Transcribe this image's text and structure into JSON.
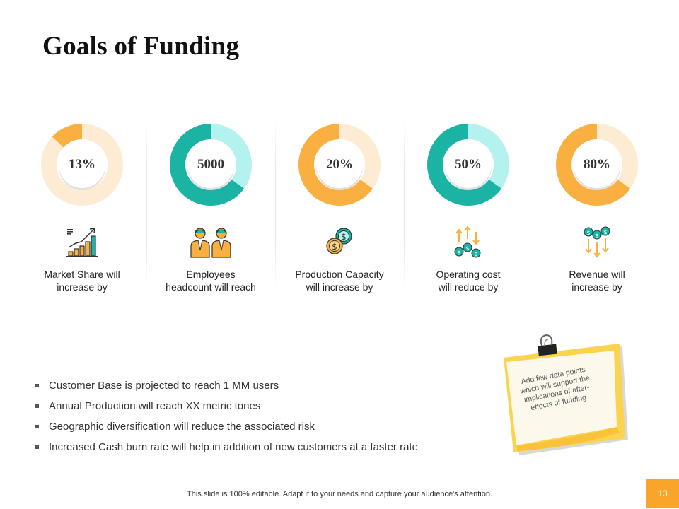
{
  "slide": {
    "title": "Goals of Funding",
    "footer": "This slide is 100% editable. Adapt it to your needs and capture your audience's attention.",
    "page_number": "13"
  },
  "colors": {
    "orange": "#f9b040",
    "orange_light": "#fdebd3",
    "teal": "#1bb3a4",
    "teal_light": "#b3f2ef"
  },
  "metrics": [
    {
      "value_label": "13%",
      "fraction": 0.13,
      "color": "orange",
      "icon": "growth-chart-icon",
      "caption_line1": "Market Share will",
      "caption_line2": "increase by"
    },
    {
      "value_label": "5000",
      "fraction": 0.65,
      "color": "teal",
      "icon": "employees-icon",
      "caption_line1": "Employees",
      "caption_line2": "headcount will reach"
    },
    {
      "value_label": "20%",
      "fraction": 0.65,
      "color": "orange",
      "icon": "coins-icon",
      "caption_line1": "Production Capacity",
      "caption_line2": "will increase by"
    },
    {
      "value_label": "50%",
      "fraction": 0.65,
      "color": "teal",
      "icon": "cost-reduction-icon",
      "caption_line1": "Operating cost",
      "caption_line2": "will reduce by"
    },
    {
      "value_label": "80%",
      "fraction": 0.65,
      "color": "orange",
      "icon": "revenue-increase-icon",
      "caption_line1": "Revenue will",
      "caption_line2": "increase by"
    }
  ],
  "bullets": [
    "Customer Base is projected to reach 1 MM users",
    "Annual Production will reach XX metric tones",
    "Geographic diversification will reduce the associated risk",
    "Increased Cash burn rate will help in addition of new customers at a faster rate"
  ],
  "sticky_note": {
    "text": "Add few data points which will support the implications of after-effects of funding",
    "icon": "binder-clip-icon"
  }
}
